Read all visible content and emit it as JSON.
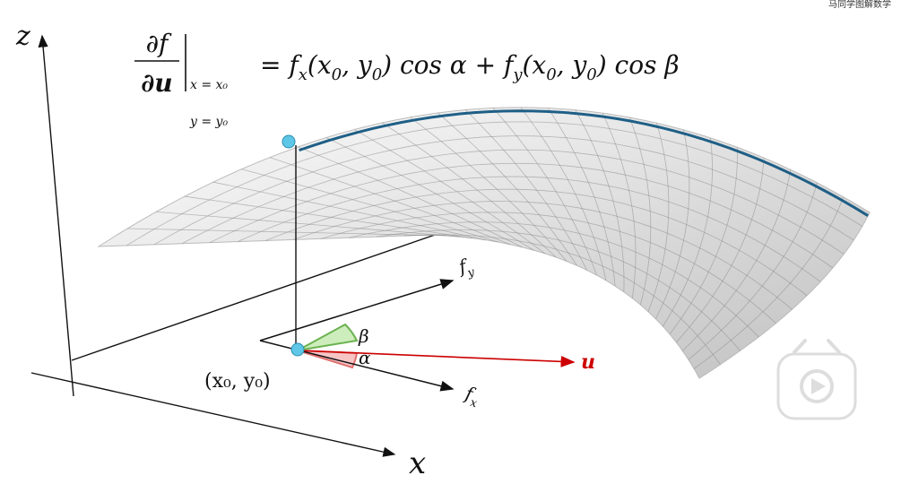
{
  "watermark": "马同学图解数学",
  "formula": {
    "numerator": "∂f",
    "denominator": "∂u",
    "condition_x": "x = x₀",
    "condition_y": "y = y₀",
    "rhs": [
      "= f",
      "x",
      "(x",
      "0",
      ", y",
      "0",
      ") cos α + f",
      "y",
      "(x",
      "0",
      ", y",
      "0",
      ") cos β"
    ]
  },
  "axes": {
    "z": "z",
    "x": "x"
  },
  "point_label": "(x₀, y₀)",
  "vectors": {
    "fy": [
      "f",
      "y"
    ],
    "fx": [
      "f",
      "x"
    ],
    "u": "u"
  },
  "angles": {
    "alpha": "α",
    "beta": "β"
  }
}
